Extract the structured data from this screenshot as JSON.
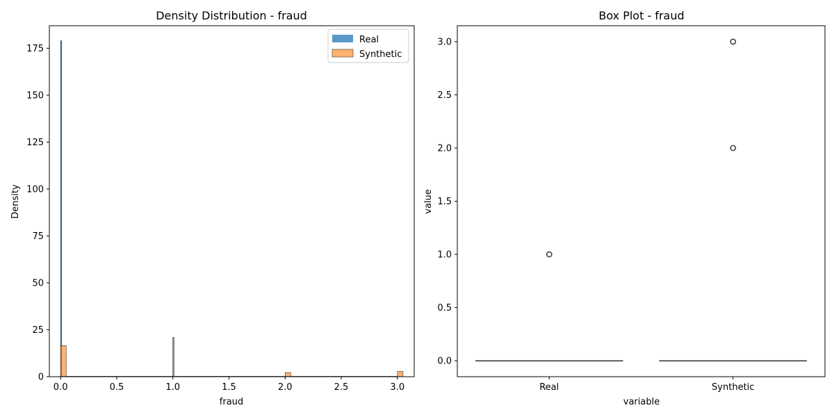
{
  "chart_data": [
    {
      "type": "histogram",
      "title": "Density Distribution - fraud",
      "xlabel": "fraud",
      "ylabel": "Density",
      "xlim": [
        -0.1,
        3.15
      ],
      "ylim": [
        0,
        187
      ],
      "xticks": [
        "0.0",
        "0.5",
        "1.0",
        "1.5",
        "2.0",
        "2.5",
        "3.0"
      ],
      "xtick_values": [
        0,
        0.5,
        1.0,
        1.5,
        2.0,
        2.5,
        3.0
      ],
      "yticks": [
        "0",
        "25",
        "50",
        "75",
        "100",
        "125",
        "150",
        "175"
      ],
      "ytick_values": [
        0,
        25,
        50,
        75,
        100,
        125,
        150,
        175
      ],
      "legend": {
        "placement": "upper-right",
        "entries": [
          "Real",
          "Synthetic"
        ]
      },
      "series": [
        {
          "name": "Real",
          "color": "#1f77b4",
          "bars": [
            {
              "x": 0.0,
              "width": 0.01,
              "density": 179
            },
            {
              "x": 1.0,
              "width": 0.01,
              "density": 21
            }
          ]
        },
        {
          "name": "Synthetic",
          "color": "#ff7f0e",
          "bars": [
            {
              "x": 0.0,
              "width": 0.05,
              "density": 16.6
            },
            {
              "x": 2.0,
              "width": 0.05,
              "density": 2.2
            },
            {
              "x": 3.0,
              "width": 0.05,
              "density": 2.8
            }
          ]
        }
      ]
    },
    {
      "type": "box",
      "title": "Box Plot - fraud",
      "xlabel": "variable",
      "ylabel": "value",
      "ylim": [
        -0.15,
        3.15
      ],
      "categories": [
        "Real",
        "Synthetic"
      ],
      "yticks": [
        "0.0",
        "0.5",
        "1.0",
        "1.5",
        "2.0",
        "2.5",
        "3.0"
      ],
      "ytick_values": [
        0,
        0.5,
        1.0,
        1.5,
        2.0,
        2.5,
        3.0
      ],
      "boxes": [
        {
          "name": "Real",
          "color": "#1f77b4",
          "q1": 0,
          "median": 0,
          "q3": 0,
          "whisker_low": 0,
          "whisker_high": 0,
          "outliers": [
            1.0
          ]
        },
        {
          "name": "Synthetic",
          "color": "#ff7f0e",
          "q1": 0,
          "median": 0,
          "q3": 0,
          "whisker_low": 0,
          "whisker_high": 0,
          "outliers": [
            2.0,
            3.0
          ]
        }
      ]
    }
  ]
}
